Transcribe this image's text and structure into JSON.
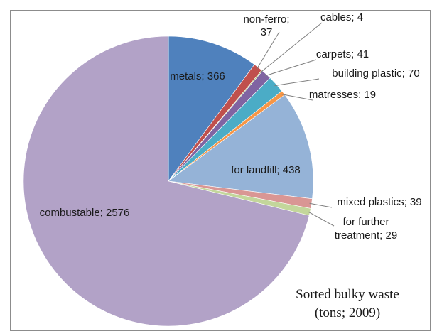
{
  "chart_data": {
    "type": "pie",
    "title": [
      "Sorted bulky waste",
      "(tons; 2009)"
    ],
    "slices": [
      {
        "name": "metals",
        "value": 366,
        "color": "#4f81bd",
        "label_lines": [
          "metals; 366"
        ]
      },
      {
        "name": "non-ferro",
        "value": 37,
        "color": "#c0504d",
        "label_lines": [
          "non-ferro;",
          "37"
        ]
      },
      {
        "name": "cables",
        "value": 4,
        "color": "#9bbb59",
        "label_lines": [
          "cables; 4"
        ]
      },
      {
        "name": "carpets",
        "value": 41,
        "color": "#8064a2",
        "label_lines": [
          "carpets; 41"
        ]
      },
      {
        "name": "building plastic",
        "value": 70,
        "color": "#4bacc6",
        "label_lines": [
          "building plastic; 70"
        ]
      },
      {
        "name": "matresses",
        "value": 19,
        "color": "#f79646",
        "label_lines": [
          "matresses; 19"
        ]
      },
      {
        "name": "for landfill",
        "value": 438,
        "color": "#95b3d7",
        "label_lines": [
          "for landfill; 438"
        ]
      },
      {
        "name": "mixed plastics",
        "value": 39,
        "color": "#d99694",
        "label_lines": [
          "mixed plastics; 39"
        ]
      },
      {
        "name": "for further treatment",
        "value": 29,
        "color": "#c3d69b",
        "label_lines": [
          "for further",
          "treatment; 29"
        ]
      },
      {
        "name": "combustable",
        "value": 2576,
        "color": "#b2a2c7",
        "label_lines": [
          "combustable; 2576"
        ]
      }
    ]
  }
}
